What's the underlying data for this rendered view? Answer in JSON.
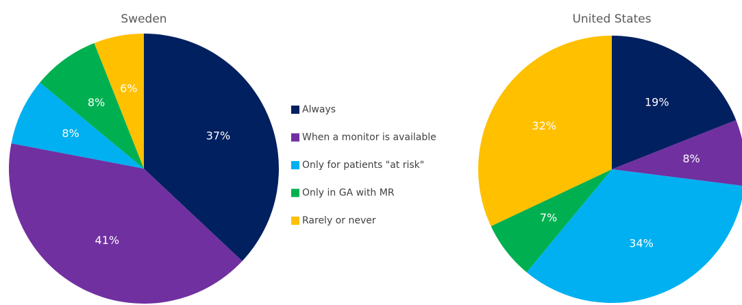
{
  "chart_data": [
    {
      "type": "pie",
      "title": "Sweden",
      "categories": [
        "Always",
        "When a monitor is available",
        "Only for patients \"at risk\"",
        "Only in GA with MR",
        "Rarely or never"
      ],
      "values": [
        37,
        41,
        8,
        8,
        6
      ],
      "value_labels": [
        "37%",
        "41%",
        "8%",
        "8%",
        "6%"
      ],
      "colors": [
        "#002060",
        "#7030a0",
        "#00b0f0",
        "#00b050",
        "#ffc000"
      ]
    },
    {
      "type": "pie",
      "title": "United States",
      "categories": [
        "Always",
        "When a monitor is available",
        "Only for patients \"at risk\"",
        "Only in GA with MR",
        "Rarely or never"
      ],
      "values": [
        19,
        8,
        34,
        7,
        32
      ],
      "value_labels": [
        "19%",
        "8%",
        "34%",
        "7%",
        "32%"
      ],
      "colors": [
        "#002060",
        "#7030a0",
        "#00b0f0",
        "#00b050",
        "#ffc000"
      ]
    }
  ]
}
